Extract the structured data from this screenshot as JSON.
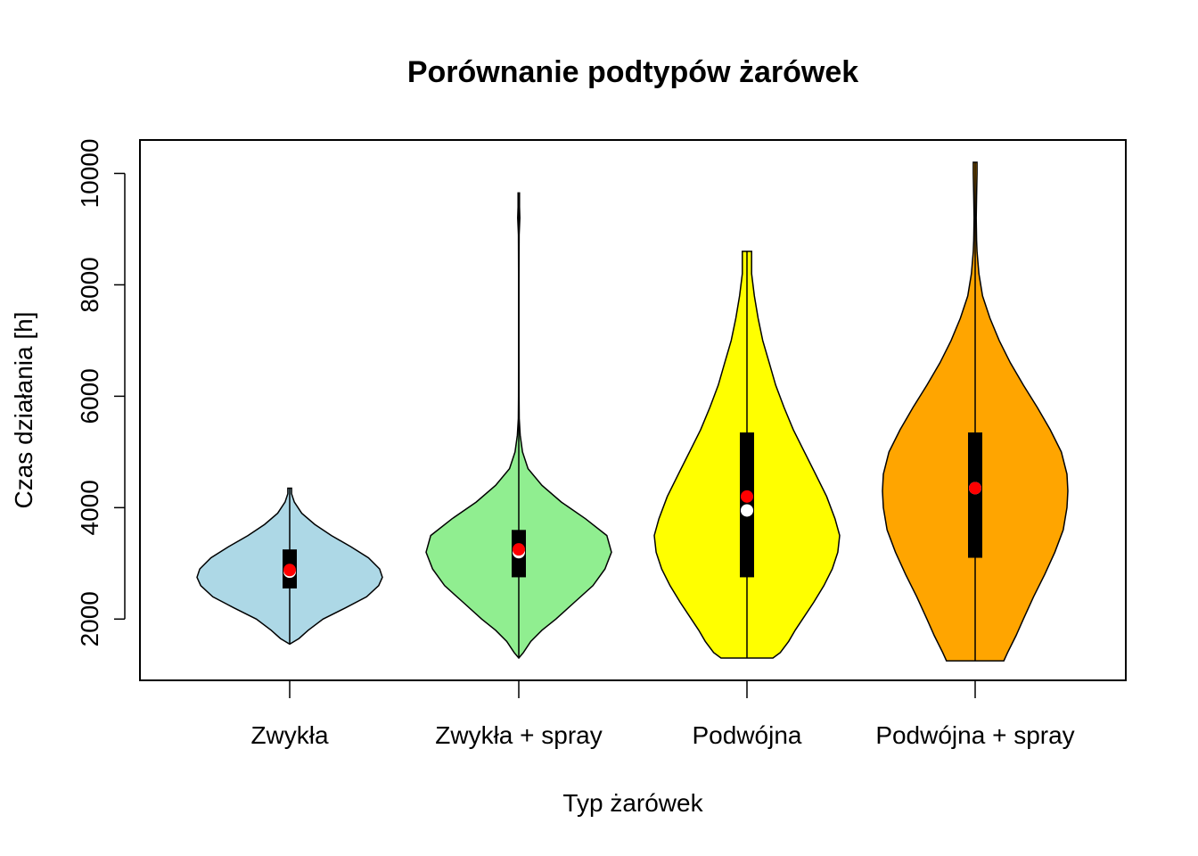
{
  "chart_data": {
    "type": "violin",
    "title": "Porównanie podtypów żarówek",
    "xlabel": "Typ żarówek",
    "ylabel": "Czas działania [h]",
    "ylim": [
      900,
      10600
    ],
    "yticks": [
      2000,
      4000,
      6000,
      8000,
      10000
    ],
    "categories": [
      "Zwykła",
      "Zwykła + spray",
      "Podwójna",
      "Podwójna + spray"
    ],
    "series": [
      {
        "category": "Zwykła",
        "color": "#ADD8E6",
        "min": 1550,
        "q1": 2550,
        "median": 2850,
        "mean": 2880,
        "q3": 3250,
        "max": 4350,
        "profile": [
          [
            1550,
            0.0
          ],
          [
            1650,
            0.1
          ],
          [
            1800,
            0.2
          ],
          [
            2000,
            0.36
          ],
          [
            2200,
            0.6
          ],
          [
            2400,
            0.83
          ],
          [
            2600,
            0.96
          ],
          [
            2750,
            1.0
          ],
          [
            2900,
            0.97
          ],
          [
            3100,
            0.85
          ],
          [
            3300,
            0.66
          ],
          [
            3500,
            0.45
          ],
          [
            3700,
            0.27
          ],
          [
            3900,
            0.13
          ],
          [
            4100,
            0.05
          ],
          [
            4250,
            0.02
          ],
          [
            4350,
            0.02
          ]
        ]
      },
      {
        "category": "Zwykła + spray",
        "color": "#90EE90",
        "min": 1300,
        "q1": 2750,
        "median": 3200,
        "mean": 3250,
        "q3": 3600,
        "max": 9650,
        "profile": [
          [
            1300,
            0.0
          ],
          [
            1400,
            0.05
          ],
          [
            1600,
            0.13
          ],
          [
            1800,
            0.25
          ],
          [
            2000,
            0.4
          ],
          [
            2300,
            0.6
          ],
          [
            2600,
            0.8
          ],
          [
            2900,
            0.93
          ],
          [
            3200,
            1.0
          ],
          [
            3500,
            0.95
          ],
          [
            3800,
            0.72
          ],
          [
            4100,
            0.46
          ],
          [
            4400,
            0.25
          ],
          [
            4700,
            0.1
          ],
          [
            5000,
            0.04
          ],
          [
            5300,
            0.015
          ],
          [
            5600,
            0.005
          ],
          [
            6000,
            0.003
          ],
          [
            7000,
            0.002
          ],
          [
            8000,
            0.002
          ],
          [
            8900,
            0.004
          ],
          [
            9200,
            0.012
          ],
          [
            9400,
            0.008
          ],
          [
            9650,
            0.008
          ]
        ]
      },
      {
        "category": "Podwójna",
        "color": "#FFFF00",
        "min": 1300,
        "q1": 2750,
        "median": 3950,
        "mean": 4200,
        "q3": 5350,
        "max": 8600,
        "profile": [
          [
            1300,
            0.28
          ],
          [
            1400,
            0.36
          ],
          [
            1600,
            0.45
          ],
          [
            1800,
            0.52
          ],
          [
            2000,
            0.6
          ],
          [
            2300,
            0.72
          ],
          [
            2600,
            0.83
          ],
          [
            2900,
            0.92
          ],
          [
            3200,
            0.98
          ],
          [
            3500,
            1.0
          ],
          [
            3800,
            0.95
          ],
          [
            4200,
            0.86
          ],
          [
            4600,
            0.74
          ],
          [
            5000,
            0.62
          ],
          [
            5400,
            0.5
          ],
          [
            5800,
            0.4
          ],
          [
            6200,
            0.31
          ],
          [
            6600,
            0.24
          ],
          [
            7000,
            0.17
          ],
          [
            7400,
            0.12
          ],
          [
            7800,
            0.08
          ],
          [
            8200,
            0.05
          ],
          [
            8500,
            0.05
          ],
          [
            8600,
            0.05
          ]
        ]
      },
      {
        "category": "Podwójna + spray",
        "color": "#FFA500",
        "min": 1250,
        "q1": 3100,
        "median": 4350,
        "mean": 4350,
        "q3": 5350,
        "max": 10200,
        "profile": [
          [
            1250,
            0.31
          ],
          [
            1400,
            0.35
          ],
          [
            1700,
            0.44
          ],
          [
            2000,
            0.52
          ],
          [
            2400,
            0.63
          ],
          [
            2800,
            0.75
          ],
          [
            3200,
            0.86
          ],
          [
            3600,
            0.95
          ],
          [
            4000,
            0.99
          ],
          [
            4300,
            1.0
          ],
          [
            4600,
            0.99
          ],
          [
            5000,
            0.93
          ],
          [
            5400,
            0.81
          ],
          [
            5800,
            0.67
          ],
          [
            6200,
            0.52
          ],
          [
            6600,
            0.38
          ],
          [
            7000,
            0.26
          ],
          [
            7400,
            0.16
          ],
          [
            7800,
            0.08
          ],
          [
            8200,
            0.04
          ],
          [
            8600,
            0.02
          ],
          [
            8800,
            0.015
          ],
          [
            9200,
            0.012
          ],
          [
            9600,
            0.015
          ],
          [
            10000,
            0.02
          ],
          [
            10200,
            0.02
          ]
        ]
      }
    ],
    "mean_marker_color": "#FF0000",
    "median_marker_color": "#FFFFFF",
    "box_color": "#000000"
  }
}
